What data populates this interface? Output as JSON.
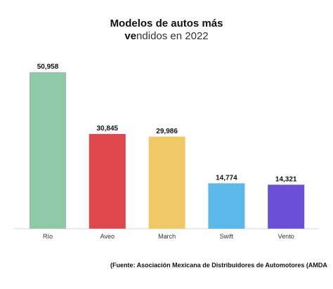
{
  "title": {
    "line1": "Modelos de autos más",
    "line2_bold": "ve",
    "line2_rest": "ndidos en 2022"
  },
  "source": "(Fuente: Asociación Mexicana de Distribuidores de Automotores (AMDA",
  "chart_data": {
    "type": "bar",
    "title": "Modelos de autos más vendidos en 2022",
    "categories": [
      "Río",
      "Aveo",
      "March",
      "Swift",
      "Vento"
    ],
    "values": [
      50958,
      30845,
      29986,
      14774,
      14321
    ],
    "value_labels": [
      "50,958",
      "30,845",
      "29,986",
      "14,774",
      "14,321"
    ],
    "colors": [
      "#8fc9a8",
      "#e0474c",
      "#f0c865",
      "#5bb8e8",
      "#6b4fd6"
    ],
    "xlabel": "",
    "ylabel": "",
    "ylim": [
      0,
      50958
    ],
    "grid": false,
    "legend": "none"
  }
}
